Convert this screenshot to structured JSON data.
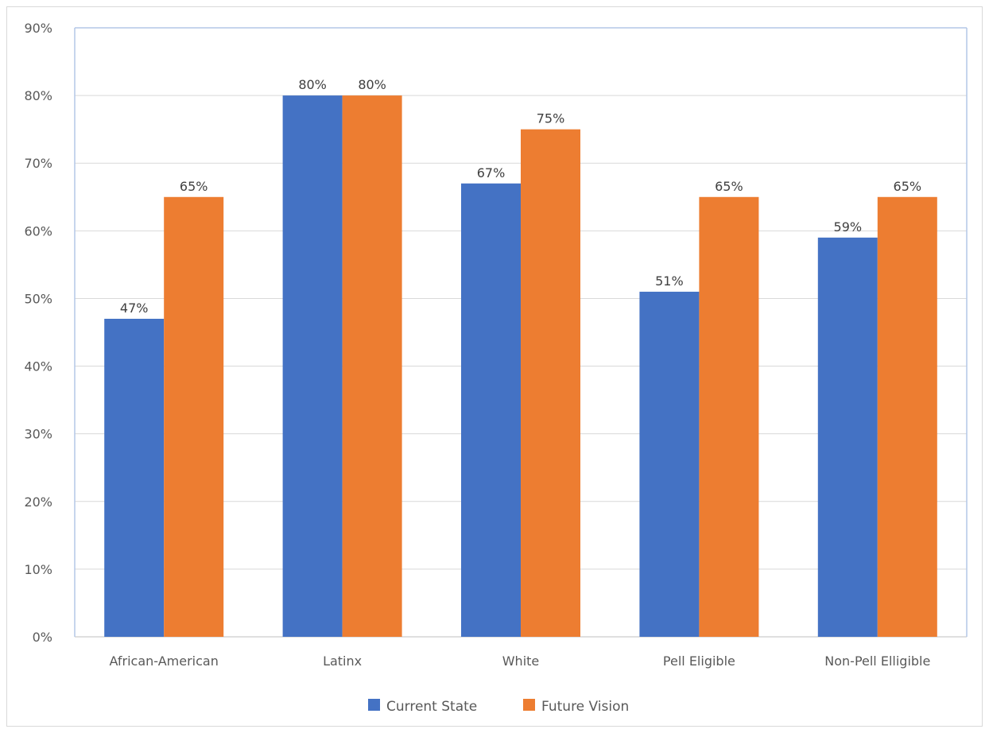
{
  "chart_data": {
    "type": "bar",
    "title": "",
    "xlabel": "",
    "ylabel": "",
    "categories": [
      "African-American",
      "Latinx",
      "White",
      "Pell Eligible",
      "Non-Pell Elligible"
    ],
    "series": [
      {
        "name": "Current State",
        "color": "#4472c4",
        "values": [
          47,
          80,
          67,
          51,
          59
        ],
        "labels": [
          "47%",
          "80%",
          "67%",
          "51%",
          "59%"
        ]
      },
      {
        "name": "Future Vision",
        "color": "#ed7d31",
        "values": [
          65,
          80,
          75,
          65,
          65
        ],
        "labels": [
          "65%",
          "80%",
          "75%",
          "65%",
          "65%"
        ]
      }
    ],
    "ylim": [
      0,
      90
    ],
    "yticks": [
      0,
      10,
      20,
      30,
      40,
      50,
      60,
      70,
      80,
      90
    ],
    "ytick_labels": [
      "0%",
      "10%",
      "20%",
      "30%",
      "40%",
      "50%",
      "60%",
      "70%",
      "80%",
      "90%"
    ],
    "grid": true,
    "legend": "bottom-center"
  }
}
